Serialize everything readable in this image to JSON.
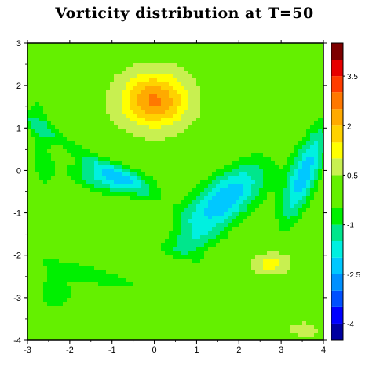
{
  "chart_data": {
    "type": "heatmap",
    "title": "Vorticity distribution at T=50",
    "xlabel": "",
    "ylabel": "",
    "xlim": [
      -3,
      4
    ],
    "ylim": [
      -4,
      3
    ],
    "x_ticks": [
      "-3",
      "-2",
      "-1",
      "0",
      "1",
      "2",
      "3",
      "4"
    ],
    "y_ticks": [
      "3",
      "2",
      "1",
      "0",
      "-1",
      "-2",
      "-3",
      "-4"
    ],
    "colorbar": {
      "range": [
        -4.5,
        4.5
      ],
      "levels": [
        -4.5,
        -4,
        -3.5,
        -3,
        -2.5,
        -2,
        -1.5,
        -1,
        -0.5,
        0.5,
        1,
        1.5,
        2,
        2.5,
        3,
        3.5,
        4,
        4.5
      ],
      "colors": [
        "#0000a0",
        "#0000ff",
        "#0050ff",
        "#0090ff",
        "#00c8ff",
        "#00f0e0",
        "#00e68c",
        "#00f000",
        "#64f000",
        "#c8f050",
        "#ffff00",
        "#ffd200",
        "#ffaa00",
        "#ff7800",
        "#ff3c00",
        "#e60000",
        "#7d0000"
      ],
      "tick_labels": [
        "3.5",
        "2",
        "0.5",
        "-1",
        "-2.5",
        "-4"
      ],
      "tick_values": [
        3.5,
        2,
        0.5,
        -1,
        -2.5,
        -4
      ]
    },
    "background_value": 0.3,
    "features": [
      {
        "x": 0,
        "y": 1.65,
        "peak": 2.6,
        "kind": "positive-vortex"
      },
      {
        "x": 2.75,
        "y": -2.2,
        "peak": 1.4,
        "kind": "positive-vortex"
      },
      {
        "x": 3.6,
        "y": -3.65,
        "peak": 1.0,
        "kind": "positive-vortex"
      },
      {
        "x": -1.0,
        "y": -0.2,
        "peak": -1.8,
        "kind": "negative-vortex"
      },
      {
        "x": 1.65,
        "y": -0.7,
        "peak": -2.4,
        "kind": "negative-vortex"
      },
      {
        "x": 3.55,
        "y": -0.1,
        "peak": -2.2,
        "kind": "negative-vortex"
      }
    ]
  }
}
